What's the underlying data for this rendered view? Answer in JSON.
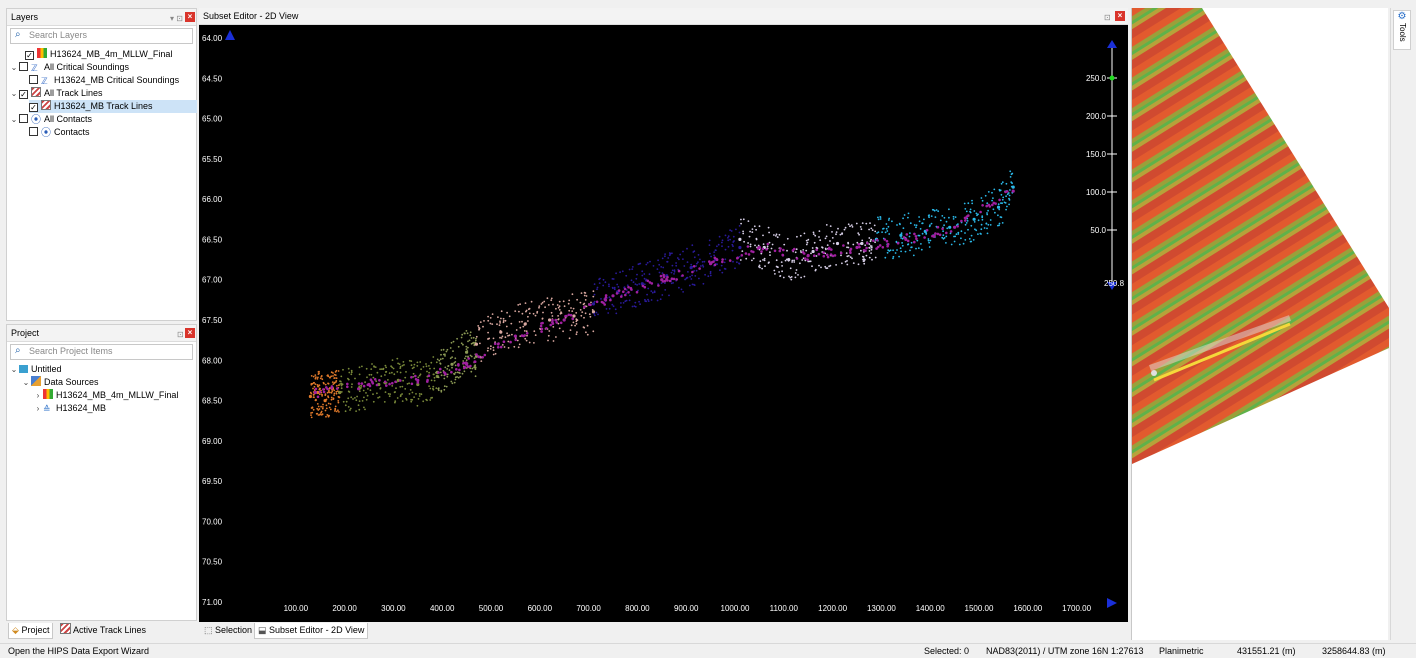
{
  "layers_panel": {
    "title": "Layers",
    "search_placeholder": "Search Layers",
    "items": [
      {
        "label": "H13624_MB_4m_MLLW_Final",
        "checked": true
      },
      {
        "label": "All Critical Soundings",
        "checked": false
      },
      {
        "label": "H13624_MB Critical Soundings",
        "checked": false
      },
      {
        "label": "All Track Lines",
        "checked": true
      },
      {
        "label": "H13624_MB Track Lines",
        "checked": true
      },
      {
        "label": "All Contacts",
        "checked": false
      },
      {
        "label": "Contacts",
        "checked": false
      }
    ]
  },
  "project_panel": {
    "title": "Project",
    "search_placeholder": "Search Project Items",
    "items": [
      {
        "label": "Untitled"
      },
      {
        "label": "Data Sources"
      },
      {
        "label": "H13624_MB_4m_MLLW_Final"
      },
      {
        "label": "H13624_MB"
      }
    ]
  },
  "left_tabs": [
    "Project",
    "Active Track Lines"
  ],
  "editor": {
    "title": "Subset Editor - 2D View",
    "tabs": [
      "Selection",
      "Subset Editor - 2D View"
    ]
  },
  "side_toolbar": {
    "label": "Tools"
  },
  "status_bar": {
    "message": "Open the HIPS Data Export Wizard",
    "selected": "Selected: 0",
    "crs": "NAD83(2011) / UTM zone 16N",
    "scale": "1:27613",
    "mode": "Planimetric",
    "easting": "431551.21 (m)",
    "northing": "3258644.83 (m)"
  },
  "colors": {
    "plot_bg": "#000000",
    "close_red": "#d9342b",
    "axis_blue": "#1a2fd8",
    "slider_green": "#22dd22"
  },
  "chart_data": {
    "type": "scatter",
    "title": "",
    "xlabel": "",
    "ylabel": "",
    "x_ticks": [
      "100.00",
      "200.00",
      "300.00",
      "400.00",
      "500.00",
      "600.00",
      "700.00",
      "800.00",
      "900.00",
      "1000.00",
      "1100.00",
      "1200.00",
      "1300.00",
      "1400.00",
      "1500.00",
      "1600.00",
      "1700.00"
    ],
    "y_ticks": [
      "64.00",
      "64.50",
      "65.00",
      "65.50",
      "66.00",
      "66.50",
      "67.00",
      "67.50",
      "68.00",
      "68.50",
      "69.00",
      "69.50",
      "70.00",
      "70.50",
      "71.00"
    ],
    "xlim": [
      0,
      1750
    ],
    "ylim": [
      64.0,
      71.0
    ],
    "y_inverted": true,
    "side_scale_ticks": [
      "250.0",
      "200.0",
      "150.0",
      "100.0",
      "50.0"
    ],
    "side_scale_bottom_label": "250.8",
    "series": [
      {
        "color": "#e0792a",
        "x": [
          130,
          145,
          160,
          175,
          190
        ],
        "y": [
          68.45,
          68.4,
          68.5,
          68.35,
          68.4
        ]
      },
      {
        "color": "#7a8a3a",
        "x": [
          190,
          230,
          270,
          310,
          350,
          390
        ],
        "y": [
          68.4,
          68.35,
          68.3,
          68.25,
          68.3,
          68.2
        ]
      },
      {
        "color": "#8c9a55",
        "x": [
          390,
          420,
          450,
          470
        ],
        "y": [
          68.15,
          68.05,
          67.9,
          67.95
        ]
      },
      {
        "color": "#d9a8a0",
        "x": [
          470,
          520,
          570,
          620,
          670,
          710
        ],
        "y": [
          67.8,
          67.65,
          67.55,
          67.5,
          67.45,
          67.4
        ]
      },
      {
        "color": "#2a1a9a",
        "x": [
          710,
          760,
          810,
          860,
          910,
          960,
          1010
        ],
        "y": [
          67.3,
          67.15,
          67.05,
          66.95,
          66.85,
          66.75,
          66.6
        ]
      },
      {
        "color": "#d8d0e8",
        "x": [
          1010,
          1060,
          1110,
          1160,
          1210,
          1260,
          1290
        ],
        "y": [
          66.5,
          66.6,
          66.75,
          66.65,
          66.55,
          66.55,
          66.5
        ]
      },
      {
        "color": "#2ab8e8",
        "x": [
          1290,
          1340,
          1390,
          1440,
          1490,
          1540,
          1570
        ],
        "y": [
          66.5,
          66.45,
          66.4,
          66.35,
          66.25,
          66.1,
          65.85
        ]
      },
      {
        "color": "#a020a0",
        "x": [
          140,
          250,
          350,
          450,
          550,
          650,
          750,
          850,
          950,
          1050,
          1150,
          1250,
          1350,
          1450,
          1570
        ],
        "y": [
          68.4,
          68.3,
          68.25,
          68.05,
          67.7,
          67.5,
          67.2,
          67.0,
          66.8,
          66.6,
          66.7,
          66.6,
          66.5,
          66.35,
          65.9
        ]
      }
    ]
  }
}
